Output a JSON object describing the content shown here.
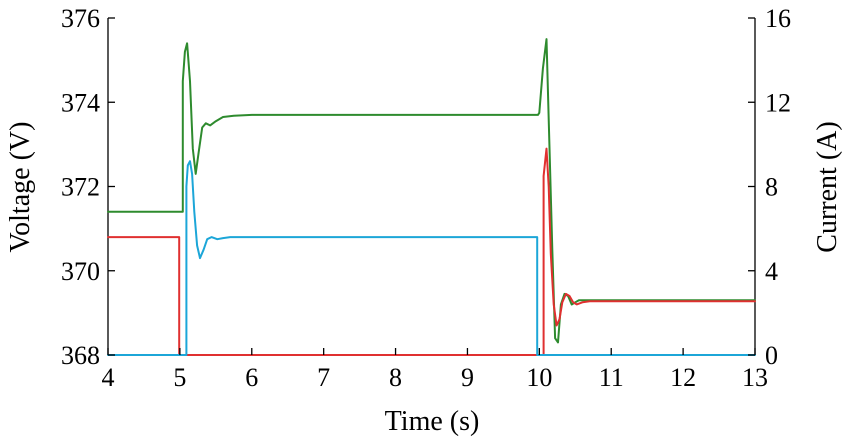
{
  "chart_data": {
    "type": "line",
    "xlabel": "Time (s)",
    "ylabel_left": "Voltage (V)",
    "ylabel_right": "Current (A)",
    "xlim": [
      4,
      13
    ],
    "ylim_left": [
      368,
      376
    ],
    "ylim_right": [
      0,
      16
    ],
    "x_ticks": [
      "4",
      "5",
      "6",
      "7",
      "8",
      "9",
      "10",
      "11",
      "12",
      "13"
    ],
    "y_left_ticks": [
      "368",
      "370",
      "372",
      "374",
      "376"
    ],
    "y_right_ticks": [
      "0",
      "4",
      "8",
      "12",
      "16"
    ],
    "grid": false,
    "series": [
      {
        "axis": "left",
        "color": "#2e8b2e",
        "x": [
          4.0,
          5.04,
          5.04,
          5.07,
          5.1,
          5.14,
          5.18,
          5.22,
          5.26,
          5.31,
          5.36,
          5.42,
          5.5,
          5.6,
          5.75,
          6.0,
          7.0,
          9.0,
          9.98,
          10.0,
          10.05,
          10.1,
          10.14,
          10.18,
          10.22,
          10.26,
          10.3,
          10.35,
          10.4,
          10.45,
          10.5,
          10.55,
          10.62,
          10.7,
          10.8,
          11.0,
          12.0,
          13.0
        ],
        "y": [
          371.4,
          371.4,
          374.5,
          375.2,
          375.4,
          374.5,
          372.9,
          372.3,
          372.8,
          373.4,
          373.5,
          373.45,
          373.55,
          373.65,
          373.68,
          373.7,
          373.7,
          373.7,
          373.7,
          373.75,
          374.8,
          375.5,
          373.0,
          370.5,
          368.4,
          368.3,
          369.2,
          369.45,
          369.4,
          369.2,
          369.25,
          369.3,
          369.3,
          369.3,
          369.3,
          369.3,
          369.3,
          369.3
        ]
      },
      {
        "axis": "right",
        "color": "#e03030",
        "x": [
          4.0,
          4.99,
          4.99,
          5.5,
          9.0,
          10.06,
          10.06,
          10.1,
          10.13,
          10.16,
          10.2,
          10.24,
          10.28,
          10.32,
          10.37,
          10.42,
          10.47,
          10.52,
          10.6,
          10.7,
          10.8,
          11.0,
          12.0,
          13.0
        ],
        "y": [
          5.6,
          5.6,
          0.0,
          0.0,
          0.0,
          0.0,
          8.5,
          9.8,
          8.0,
          4.8,
          2.4,
          1.4,
          1.7,
          2.5,
          2.9,
          2.8,
          2.5,
          2.4,
          2.5,
          2.55,
          2.55,
          2.55,
          2.55,
          2.55
        ]
      },
      {
        "axis": "right",
        "color": "#1ca6d8",
        "x": [
          4.0,
          5.09,
          5.09,
          5.11,
          5.14,
          5.17,
          5.2,
          5.24,
          5.28,
          5.33,
          5.38,
          5.44,
          5.52,
          5.6,
          5.7,
          6.0,
          7.0,
          9.0,
          9.97,
          9.97,
          10.5,
          13.0
        ],
        "y": [
          0.0,
          0.0,
          8.0,
          9.0,
          9.2,
          8.6,
          6.8,
          5.2,
          4.6,
          5.0,
          5.5,
          5.6,
          5.5,
          5.55,
          5.6,
          5.6,
          5.6,
          5.6,
          5.6,
          0.0,
          0.0,
          0.0
        ]
      }
    ]
  }
}
